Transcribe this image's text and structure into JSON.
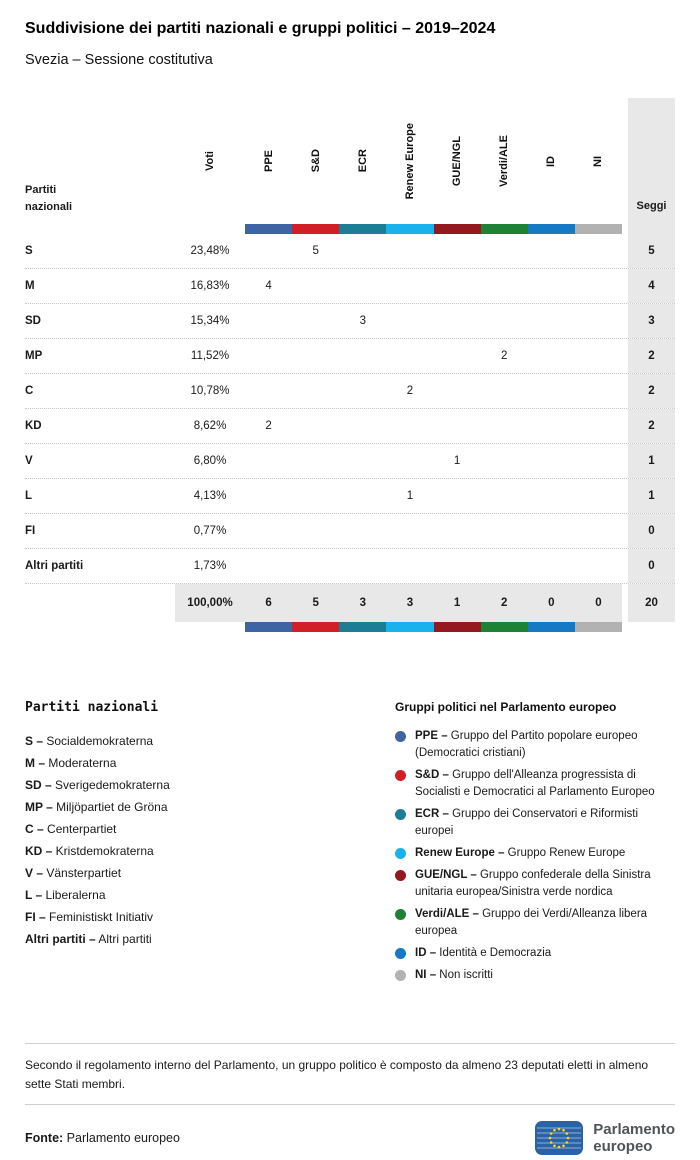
{
  "title": "Suddivisione dei partiti nazionali e gruppi politici – 2019–2024",
  "subtitle": "Svezia – Sessione costitutiva",
  "table": {
    "corner_label": "Partiti nazionali",
    "voti_label": "Voti",
    "seggi_label": "Seggi",
    "groups": [
      {
        "abbr": "PPE",
        "color": "#3e64a4"
      },
      {
        "abbr": "S&D",
        "color": "#d01f26"
      },
      {
        "abbr": "ECR",
        "color": "#1b7e94"
      },
      {
        "abbr": "Renew Europe",
        "color": "#19b2ec"
      },
      {
        "abbr": "GUE/NGL",
        "color": "#94191f"
      },
      {
        "abbr": "Verdi/ALE",
        "color": "#1e8236"
      },
      {
        "abbr": "ID",
        "color": "#1579c4"
      },
      {
        "abbr": "NI",
        "color": "#b2b2b2"
      }
    ],
    "rows": [
      {
        "party": "S",
        "voti": "23,48%",
        "cells": [
          "",
          "5",
          "",
          "",
          "",
          "",
          "",
          ""
        ],
        "seggi": "5"
      },
      {
        "party": "M",
        "voti": "16,83%",
        "cells": [
          "4",
          "",
          "",
          "",
          "",
          "",
          "",
          ""
        ],
        "seggi": "4"
      },
      {
        "party": "SD",
        "voti": "15,34%",
        "cells": [
          "",
          "",
          "3",
          "",
          "",
          "",
          "",
          ""
        ],
        "seggi": "3"
      },
      {
        "party": "MP",
        "voti": "11,52%",
        "cells": [
          "",
          "",
          "",
          "",
          "",
          "2",
          "",
          ""
        ],
        "seggi": "2"
      },
      {
        "party": "C",
        "voti": "10,78%",
        "cells": [
          "",
          "",
          "",
          "2",
          "",
          "",
          "",
          ""
        ],
        "seggi": "2"
      },
      {
        "party": "KD",
        "voti": "8,62%",
        "cells": [
          "2",
          "",
          "",
          "",
          "",
          "",
          "",
          ""
        ],
        "seggi": "2"
      },
      {
        "party": "V",
        "voti": "6,80%",
        "cells": [
          "",
          "",
          "",
          "",
          "1",
          "",
          "",
          ""
        ],
        "seggi": "1"
      },
      {
        "party": "L",
        "voti": "4,13%",
        "cells": [
          "",
          "",
          "",
          "1",
          "",
          "",
          "",
          ""
        ],
        "seggi": "1"
      },
      {
        "party": "FI",
        "voti": "0,77%",
        "cells": [
          "",
          "",
          "",
          "",
          "",
          "",
          "",
          ""
        ],
        "seggi": "0"
      },
      {
        "party": "Altri partiti",
        "voti": "1,73%",
        "cells": [
          "",
          "",
          "",
          "",
          "",
          "",
          "",
          ""
        ],
        "seggi": "0"
      }
    ],
    "total_row": {
      "voti": "100,00%",
      "cells": [
        "6",
        "5",
        "3",
        "3",
        "1",
        "2",
        "0",
        "0"
      ],
      "seggi": "20"
    }
  },
  "party_legend": {
    "heading": "Partiti nazionali",
    "items": [
      {
        "abbr": "S –",
        "name": "Socialdemokraterna"
      },
      {
        "abbr": "M –",
        "name": "Moderaterna"
      },
      {
        "abbr": "SD –",
        "name": "Sverigedemokraterna"
      },
      {
        "abbr": "MP –",
        "name": "Miljöpartiet de Gröna"
      },
      {
        "abbr": "C –",
        "name": "Centerpartiet"
      },
      {
        "abbr": "KD –",
        "name": "Kristdemokraterna"
      },
      {
        "abbr": "V –",
        "name": "Vänsterpartiet"
      },
      {
        "abbr": "L –",
        "name": "Liberalerna"
      },
      {
        "abbr": "FI –",
        "name": "Feministiskt Initiativ"
      },
      {
        "abbr": "Altri partiti –",
        "name": "Altri partiti"
      }
    ]
  },
  "group_legend": {
    "heading": "Gruppi politici nel Parlamento europeo",
    "items": [
      {
        "abbr": "PPE –",
        "name": "Gruppo del Partito popolare europeo (Democratici cristiani)",
        "color": "#3e64a4"
      },
      {
        "abbr": "S&D –",
        "name": "Gruppo dell'Alleanza progressista di Socialisti e Democratici al Parlamento Europeo",
        "color": "#d01f26"
      },
      {
        "abbr": "ECR –",
        "name": "Gruppo dei Conservatori e Riformisti europei",
        "color": "#1b7e94"
      },
      {
        "abbr": "Renew Europe –",
        "name": "Gruppo Renew Europe",
        "color": "#19b2ec"
      },
      {
        "abbr": "GUE/NGL –",
        "name": "Gruppo confederale della Sinistra unitaria europea/Sinistra verde nordica",
        "color": "#94191f"
      },
      {
        "abbr": "Verdi/ALE –",
        "name": "Gruppo dei Verdi/Alleanza libera europea",
        "color": "#1e8236"
      },
      {
        "abbr": "ID –",
        "name": "Identità e Democrazia",
        "color": "#1579c4"
      },
      {
        "abbr": "NI –",
        "name": "Non iscritti",
        "color": "#b2b2b2"
      }
    ]
  },
  "footnote": "Secondo il regolamento interno del Parlamento, un gruppo politico è composto da almeno 23 deputati eletti in almeno sette Stati membri.",
  "source": {
    "label": "Fonte:",
    "value": "Parlamento europeo"
  },
  "logo": {
    "line1": "Parlamento",
    "line2": "europeo"
  },
  "chart_data": {
    "type": "table",
    "title": "Suddivisione dei partiti nazionali e gruppi politici – 2019–2024",
    "subtitle": "Svezia – Sessione costitutiva",
    "columns": [
      "Partiti nazionali",
      "Voti",
      "PPE",
      "S&D",
      "ECR",
      "Renew Europe",
      "GUE/NGL",
      "Verdi/ALE",
      "ID",
      "NI",
      "Seggi"
    ],
    "rows": [
      [
        "S",
        "23,48%",
        null,
        5,
        null,
        null,
        null,
        null,
        null,
        null,
        5
      ],
      [
        "M",
        "16,83%",
        4,
        null,
        null,
        null,
        null,
        null,
        null,
        null,
        4
      ],
      [
        "SD",
        "15,34%",
        null,
        null,
        3,
        null,
        null,
        null,
        null,
        null,
        3
      ],
      [
        "MP",
        "11,52%",
        null,
        null,
        null,
        null,
        null,
        2,
        null,
        null,
        2
      ],
      [
        "C",
        "10,78%",
        null,
        null,
        null,
        2,
        null,
        null,
        null,
        null,
        2
      ],
      [
        "KD",
        "8,62%",
        2,
        null,
        null,
        null,
        null,
        null,
        null,
        null,
        2
      ],
      [
        "V",
        "6,80%",
        null,
        null,
        null,
        null,
        1,
        null,
        null,
        null,
        1
      ],
      [
        "L",
        "4,13%",
        null,
        null,
        null,
        1,
        null,
        null,
        null,
        null,
        1
      ],
      [
        "FI",
        "0,77%",
        null,
        null,
        null,
        null,
        null,
        null,
        null,
        null,
        0
      ],
      [
        "Altri partiti",
        "1,73%",
        null,
        null,
        null,
        null,
        null,
        null,
        null,
        null,
        0
      ]
    ],
    "totals": [
      "",
      "100,00%",
      6,
      5,
      3,
      3,
      1,
      2,
      0,
      0,
      20
    ],
    "group_colors": {
      "PPE": "#3e64a4",
      "S&D": "#d01f26",
      "ECR": "#1b7e94",
      "Renew Europe": "#19b2ec",
      "GUE/NGL": "#94191f",
      "Verdi/ALE": "#1e8236",
      "ID": "#1579c4",
      "NI": "#b2b2b2"
    }
  }
}
